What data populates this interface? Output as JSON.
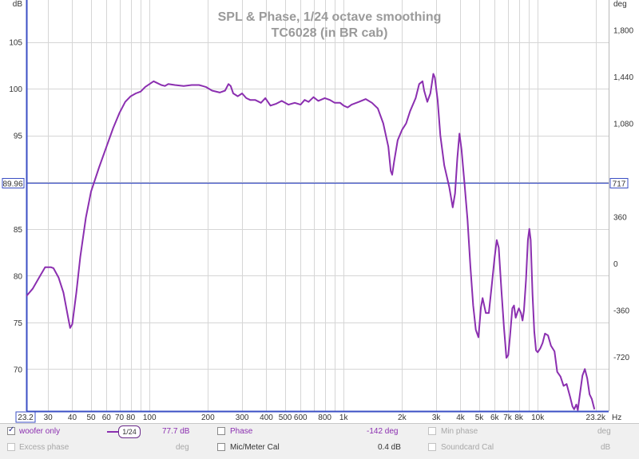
{
  "chart_data": {
    "type": "line",
    "title": "SPL & Phase, 1/24 octave smoothing",
    "subtitle": "TC6028 (in BR cab)",
    "left_unit": "dB",
    "right_unit": "deg",
    "x_unit": "Hz",
    "x_scale": "log",
    "xlim": [
      23.2,
      23200
    ],
    "ylim": [
      65.5,
      109.5
    ],
    "right_ylim": [
      -1138,
      2030
    ],
    "x_ticks": [
      {
        "v": 30,
        "label": "30"
      },
      {
        "v": 40,
        "label": "40"
      },
      {
        "v": 50,
        "label": "50"
      },
      {
        "v": 60,
        "label": "60"
      },
      {
        "v": 70,
        "label": "70"
      },
      {
        "v": 80,
        "label": "80"
      },
      {
        "v": 100,
        "label": "100"
      },
      {
        "v": 200,
        "label": "200"
      },
      {
        "v": 300,
        "label": "300"
      },
      {
        "v": 400,
        "label": "400"
      },
      {
        "v": 500,
        "label": "500"
      },
      {
        "v": 600,
        "label": "600"
      },
      {
        "v": 800,
        "label": "800"
      },
      {
        "v": 1000,
        "label": "1k"
      },
      {
        "v": 2000,
        "label": "2k"
      },
      {
        "v": 3000,
        "label": "3k"
      },
      {
        "v": 4000,
        "label": "4k"
      },
      {
        "v": 5000,
        "label": "5k"
      },
      {
        "v": 6000,
        "label": "6k"
      },
      {
        "v": 7000,
        "label": "7k"
      },
      {
        "v": 8000,
        "label": "8k"
      },
      {
        "v": 10000,
        "label": "10k"
      }
    ],
    "x_start_label": "23.2",
    "x_end_label": "23.2k",
    "y_ticks": [
      70,
      75,
      80,
      85,
      95,
      100,
      105
    ],
    "right_ticks": [
      {
        "v": -720,
        "label": "-720"
      },
      {
        "v": -360,
        "label": "-360"
      },
      {
        "v": 0,
        "label": "0"
      },
      {
        "v": 360,
        "label": "360"
      },
      {
        "v": 1080,
        "label": "1,080"
      },
      {
        "v": 1440,
        "label": "1,440"
      },
      {
        "v": 1800,
        "label": "1,800"
      }
    ],
    "cursor": {
      "y": 89.96,
      "left_label": "89.96",
      "right_label": "717"
    },
    "series": [
      {
        "name": "woofer only",
        "color": "#8b2fb0",
        "points": [
          [
            23.2,
            77.8
          ],
          [
            25,
            78.6
          ],
          [
            27,
            79.8
          ],
          [
            29,
            80.9
          ],
          [
            31,
            80.9
          ],
          [
            32,
            80.8
          ],
          [
            34,
            79.8
          ],
          [
            36,
            78.2
          ],
          [
            38,
            75.6
          ],
          [
            39,
            74.4
          ],
          [
            40,
            74.8
          ],
          [
            42,
            78.2
          ],
          [
            44,
            82.0
          ],
          [
            47,
            86.2
          ],
          [
            50,
            89.0
          ],
          [
            55,
            91.6
          ],
          [
            60,
            93.8
          ],
          [
            65,
            95.8
          ],
          [
            70,
            97.4
          ],
          [
            75,
            98.6
          ],
          [
            80,
            99.2
          ],
          [
            85,
            99.5
          ],
          [
            90,
            99.7
          ],
          [
            95,
            100.2
          ],
          [
            100,
            100.5
          ],
          [
            105,
            100.8
          ],
          [
            110,
            100.6
          ],
          [
            115,
            100.4
          ],
          [
            120,
            100.3
          ],
          [
            125,
            100.5
          ],
          [
            135,
            100.4
          ],
          [
            150,
            100.3
          ],
          [
            165,
            100.4
          ],
          [
            180,
            100.4
          ],
          [
            195,
            100.2
          ],
          [
            210,
            99.8
          ],
          [
            230,
            99.6
          ],
          [
            245,
            99.8
          ],
          [
            255,
            100.5
          ],
          [
            262,
            100.3
          ],
          [
            270,
            99.5
          ],
          [
            285,
            99.2
          ],
          [
            300,
            99.5
          ],
          [
            315,
            99.0
          ],
          [
            330,
            98.8
          ],
          [
            350,
            98.8
          ],
          [
            375,
            98.5
          ],
          [
            395,
            99.0
          ],
          [
            420,
            98.2
          ],
          [
            450,
            98.4
          ],
          [
            480,
            98.7
          ],
          [
            520,
            98.3
          ],
          [
            560,
            98.5
          ],
          [
            600,
            98.3
          ],
          [
            630,
            98.8
          ],
          [
            660,
            98.6
          ],
          [
            700,
            99.1
          ],
          [
            740,
            98.7
          ],
          [
            800,
            99.0
          ],
          [
            850,
            98.8
          ],
          [
            900,
            98.5
          ],
          [
            960,
            98.5
          ],
          [
            1000,
            98.2
          ],
          [
            1050,
            98.0
          ],
          [
            1100,
            98.3
          ],
          [
            1200,
            98.6
          ],
          [
            1300,
            98.9
          ],
          [
            1400,
            98.5
          ],
          [
            1500,
            97.9
          ],
          [
            1600,
            96.3
          ],
          [
            1700,
            93.8
          ],
          [
            1750,
            91.2
          ],
          [
            1780,
            90.8
          ],
          [
            1820,
            92.2
          ],
          [
            1900,
            94.5
          ],
          [
            2000,
            95.6
          ],
          [
            2100,
            96.3
          ],
          [
            2200,
            97.6
          ],
          [
            2350,
            99.0
          ],
          [
            2450,
            100.5
          ],
          [
            2550,
            100.8
          ],
          [
            2600,
            99.8
          ],
          [
            2700,
            98.6
          ],
          [
            2800,
            99.5
          ],
          [
            2900,
            101.6
          ],
          [
            2950,
            101.2
          ],
          [
            3050,
            98.8
          ],
          [
            3150,
            95.0
          ],
          [
            3300,
            91.8
          ],
          [
            3500,
            89.5
          ],
          [
            3650,
            87.3
          ],
          [
            3750,
            88.8
          ],
          [
            3850,
            92.5
          ],
          [
            3950,
            95.2
          ],
          [
            4050,
            93.5
          ],
          [
            4200,
            89.8
          ],
          [
            4350,
            86.0
          ],
          [
            4500,
            81.0
          ],
          [
            4650,
            76.8
          ],
          [
            4800,
            74.2
          ],
          [
            4950,
            73.4
          ],
          [
            5100,
            76.6
          ],
          [
            5200,
            77.6
          ],
          [
            5400,
            76.0
          ],
          [
            5600,
            76.0
          ],
          [
            5800,
            79.0
          ],
          [
            6000,
            82.0
          ],
          [
            6150,
            83.8
          ],
          [
            6300,
            83.0
          ],
          [
            6500,
            78.5
          ],
          [
            6700,
            74.5
          ],
          [
            6900,
            71.2
          ],
          [
            7050,
            71.5
          ],
          [
            7200,
            73.5
          ],
          [
            7400,
            76.5
          ],
          [
            7550,
            76.8
          ],
          [
            7700,
            75.5
          ],
          [
            7900,
            76.2
          ],
          [
            8000,
            76.5
          ],
          [
            8200,
            76.0
          ],
          [
            8350,
            75.2
          ],
          [
            8500,
            76.3
          ],
          [
            8700,
            79.5
          ],
          [
            8900,
            83.8
          ],
          [
            9050,
            85.0
          ],
          [
            9200,
            83.8
          ],
          [
            9400,
            78.0
          ],
          [
            9600,
            74.0
          ],
          [
            9800,
            72.0
          ],
          [
            10000,
            71.8
          ],
          [
            10300,
            72.2
          ],
          [
            10600,
            72.8
          ],
          [
            10900,
            73.8
          ],
          [
            11300,
            73.6
          ],
          [
            11700,
            72.5
          ],
          [
            12200,
            71.9
          ],
          [
            12600,
            69.7
          ],
          [
            13100,
            69.2
          ],
          [
            13600,
            68.2
          ],
          [
            14100,
            68.4
          ],
          [
            14700,
            67.0
          ],
          [
            15100,
            66.0
          ],
          [
            15400,
            65.7
          ],
          [
            15800,
            66.2
          ],
          [
            16100,
            65.6
          ],
          [
            16500,
            67.3
          ],
          [
            17000,
            69.3
          ],
          [
            17500,
            70.0
          ],
          [
            18000,
            69.0
          ],
          [
            18500,
            67.3
          ],
          [
            19000,
            66.8
          ],
          [
            19600,
            65.7
          ]
        ]
      }
    ]
  },
  "legend": {
    "row1": {
      "series_label": "woofer only",
      "smoothing": "1/24",
      "value": "77.7 dB",
      "phase_label": "Phase",
      "phase_value": "-142 deg",
      "min_phase_label": "Min phase",
      "min_phase_unit": "deg"
    },
    "row2": {
      "excess_label": "Excess phase",
      "excess_unit": "deg",
      "mic_label": "Mic/Meter Cal",
      "mic_value": "0.4 dB",
      "soundcard_label": "Soundcard Cal",
      "soundcard_unit": "dB"
    }
  },
  "colors": {
    "curve": "#8b2fb0",
    "cursor": "#3b4fc4",
    "axis": "#3b4fc4",
    "grid": "#d6d6d6"
  }
}
